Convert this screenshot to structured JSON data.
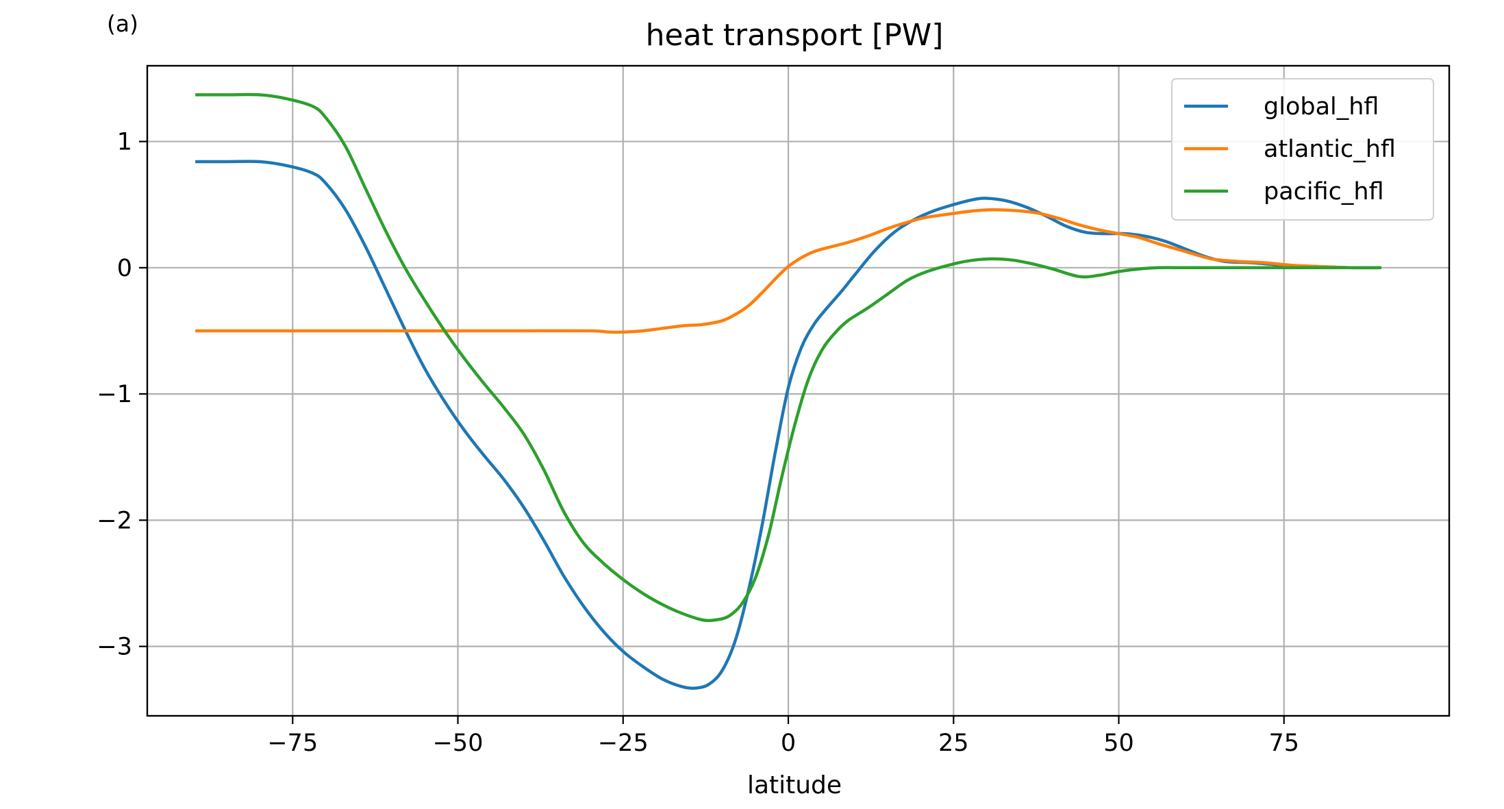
{
  "panel_label": "(a)",
  "chart_data": {
    "type": "line",
    "title": "heat transport [PW]",
    "xlabel": "latitude",
    "ylabel": "",
    "xlim": [
      -97,
      100
    ],
    "ylim": [
      -3.55,
      1.6
    ],
    "xticks": [
      -75,
      -50,
      -25,
      0,
      25,
      50,
      75
    ],
    "yticks": [
      1,
      0,
      -1,
      -2,
      -3
    ],
    "xtick_labels": [
      "−75",
      "−50",
      "−25",
      "0",
      "25",
      "50",
      "75"
    ],
    "ytick_labels": [
      "1",
      "0",
      "−1",
      "−2",
      "−3"
    ],
    "grid": true,
    "legend_position": "top-right",
    "series": [
      {
        "name": "global_hfl",
        "color": "#1f77b4",
        "x": [
          -89.5,
          -85,
          -80,
          -76,
          -72,
          -70,
          -67,
          -64,
          -61,
          -58,
          -55,
          -52,
          -49,
          -46,
          -43,
          -40,
          -37,
          -34,
          -31,
          -28,
          -25,
          -22,
          -19,
          -16,
          -14,
          -12,
          -10,
          -8,
          -6,
          -4,
          -2,
          0,
          2,
          4,
          6,
          8,
          10,
          13,
          16,
          19,
          22,
          25,
          28,
          30,
          33,
          36,
          39,
          42,
          45,
          48,
          51,
          54,
          57,
          60,
          63,
          66,
          70,
          75,
          80,
          85,
          89.5
        ],
        "y": [
          0.84,
          0.84,
          0.84,
          0.81,
          0.75,
          0.67,
          0.46,
          0.17,
          -0.16,
          -0.49,
          -0.8,
          -1.06,
          -1.29,
          -1.49,
          -1.68,
          -1.9,
          -2.16,
          -2.44,
          -2.68,
          -2.88,
          -3.04,
          -3.16,
          -3.26,
          -3.32,
          -3.33,
          -3.3,
          -3.19,
          -2.95,
          -2.55,
          -2.05,
          -1.47,
          -0.95,
          -0.63,
          -0.44,
          -0.31,
          -0.19,
          -0.06,
          0.13,
          0.28,
          0.38,
          0.45,
          0.5,
          0.54,
          0.55,
          0.53,
          0.48,
          0.41,
          0.33,
          0.28,
          0.27,
          0.27,
          0.25,
          0.21,
          0.15,
          0.09,
          0.05,
          0.04,
          0.02,
          0.01,
          0.0,
          0.0
        ]
      },
      {
        "name": "atlantic_hfl",
        "color": "#ff7f0e",
        "x": [
          -89.5,
          -80,
          -70,
          -60,
          -50,
          -40,
          -30,
          -27,
          -25,
          -22,
          -19,
          -16,
          -13,
          -10,
          -8,
          -6,
          -4,
          -2,
          0,
          2,
          4,
          6,
          9,
          12,
          15,
          18,
          21,
          25,
          28,
          31,
          35,
          38,
          41,
          44,
          47,
          50,
          53,
          56,
          60,
          64,
          68,
          72,
          76,
          80,
          85,
          89.5
        ],
        "y": [
          -0.5,
          -0.5,
          -0.5,
          -0.5,
          -0.5,
          -0.5,
          -0.5,
          -0.51,
          -0.51,
          -0.5,
          -0.48,
          -0.46,
          -0.45,
          -0.42,
          -0.37,
          -0.3,
          -0.2,
          -0.09,
          0.01,
          0.08,
          0.13,
          0.16,
          0.2,
          0.25,
          0.31,
          0.36,
          0.4,
          0.43,
          0.45,
          0.46,
          0.45,
          0.43,
          0.39,
          0.34,
          0.3,
          0.27,
          0.24,
          0.19,
          0.13,
          0.07,
          0.05,
          0.04,
          0.02,
          0.01,
          0.0,
          0.0
        ]
      },
      {
        "name": "pacific_hfl",
        "color": "#2ca02c",
        "x": [
          -89.5,
          -85,
          -80,
          -76,
          -72,
          -70,
          -67,
          -64,
          -61,
          -58,
          -55,
          -52,
          -49,
          -46,
          -43,
          -40,
          -37,
          -34,
          -31,
          -28,
          -25,
          -22,
          -19,
          -16,
          -13,
          -11,
          -9,
          -7,
          -5,
          -3,
          -1,
          1,
          3,
          5,
          7,
          9,
          12,
          15,
          18,
          21,
          25,
          28,
          31,
          34,
          37,
          40,
          44,
          47,
          50,
          53,
          56,
          60,
          65,
          70,
          75,
          80,
          85,
          89.5
        ],
        "y": [
          1.37,
          1.37,
          1.37,
          1.34,
          1.28,
          1.19,
          0.96,
          0.63,
          0.3,
          0.0,
          -0.26,
          -0.5,
          -0.72,
          -0.92,
          -1.11,
          -1.32,
          -1.6,
          -1.93,
          -2.18,
          -2.34,
          -2.47,
          -2.58,
          -2.67,
          -2.74,
          -2.79,
          -2.79,
          -2.76,
          -2.66,
          -2.46,
          -2.12,
          -1.66,
          -1.24,
          -0.89,
          -0.66,
          -0.52,
          -0.42,
          -0.32,
          -0.21,
          -0.1,
          -0.03,
          0.03,
          0.06,
          0.07,
          0.06,
          0.03,
          -0.01,
          -0.07,
          -0.06,
          -0.03,
          -0.01,
          0.0,
          0.0,
          0.0,
          0.0,
          0.0,
          0.0,
          0.0,
          0.0
        ]
      }
    ]
  }
}
